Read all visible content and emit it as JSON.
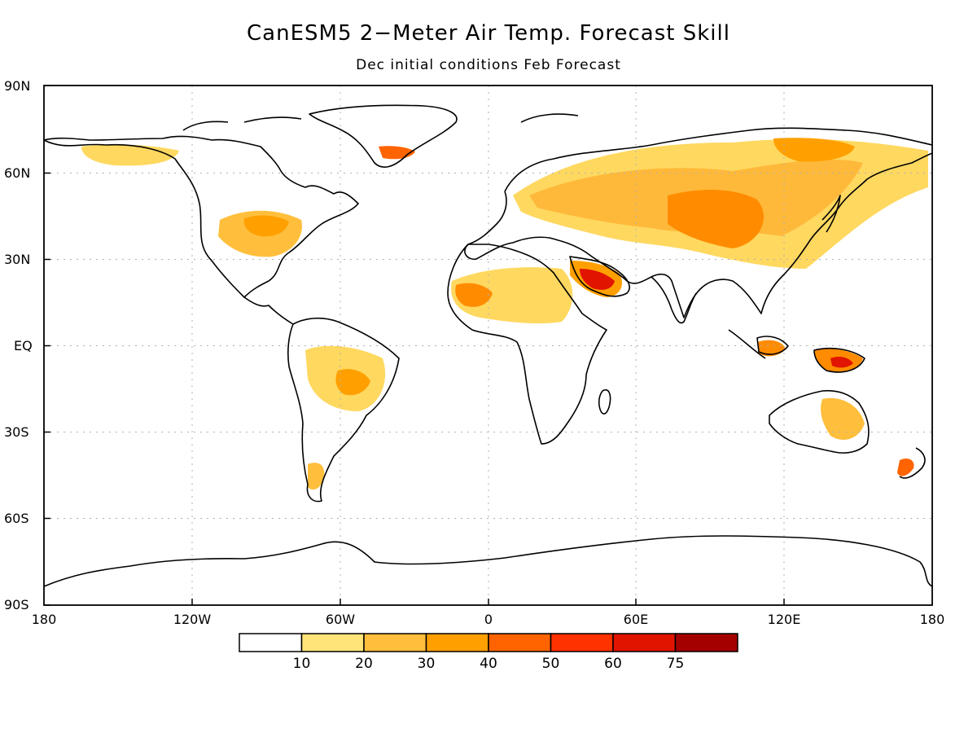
{
  "title": "CanESM5 2−Meter Air Temp. Forecast Skill",
  "subtitle": "Dec initial conditions  Feb Forecast",
  "lat_labels": [
    "90N",
    "60N",
    "30N",
    "EQ",
    "30S",
    "60S",
    "90S"
  ],
  "lon_labels": [
    "180",
    "120W",
    "60W",
    "0",
    "60E",
    "120E",
    "180"
  ],
  "colorbar": {
    "colors": [
      "#ffffff",
      "#ffe478",
      "#ffbf3c",
      "#ffa000",
      "#ff6400",
      "#ff3200",
      "#e11400",
      "#a50000"
    ],
    "labels": [
      "10",
      "20",
      "30",
      "40",
      "50",
      "60",
      "75"
    ]
  }
}
